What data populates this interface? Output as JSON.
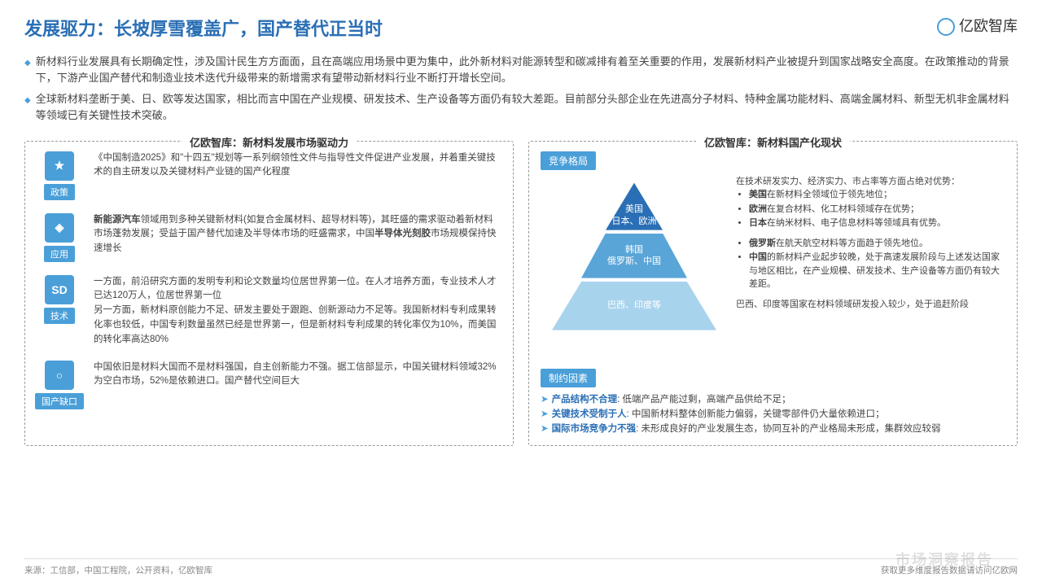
{
  "header": {
    "title": "发展驱力：长坡厚雪覆盖广，国产替代正当时",
    "logo": "亿欧智库"
  },
  "bullets": [
    "新材料行业发展具有长期确定性，涉及国计民生方方面面，且在高端应用场景中更为集中，此外新材料对能源转型和碳减排有着至关重要的作用，发展新材料产业被提升到国家战略安全高度。在政策推动的背景下，下游产业国产替代和制造业技术迭代升级带来的新增需求有望带动新材料行业不断打开增长空间。",
    "全球新材料垄断于美、日、欧等发达国家，相比而言中国在产业规模、研发技术、生产设备等方面仍有较大差距。目前部分头部企业在先进高分子材料、特种金属功能材料、高端金属材料、新型无机非金属材料等领域已有关键性技术突破。"
  ],
  "left": {
    "title": "亿欧智库：新材料发展市场驱动力",
    "drivers": [
      {
        "label": "政策",
        "icon": "★",
        "text": "《中国制造2025》和\"十四五\"规划等一系列纲领性文件与指导性文件促进产业发展，并着重关键技术的自主研发以及关键材料产业链的国产化程度"
      },
      {
        "label": "应用",
        "icon": "◈",
        "text": "<b>新能源汽车</b>领域用到多种关键新材料(如复合金属材料、超导材料等)，其旺盛的需求驱动着新材料市场蓬勃发展；受益于国产替代加速及半导体市场的旺盛需求，中国<b>半导体光刻胶</b>市场规模保持快速增长"
      },
      {
        "label": "技术",
        "icon": "SD",
        "text": "一方面，前沿研究方面的发明专利和论文数量均位居世界第一位。在人才培养方面，专业技术人才已达120万人，位居世界第一位<br>另一方面，新材料原创能力不足、研发主要处于跟跑、创新源动力不足等。我国新材料专利成果转化率也较低，中国专利数量虽然已经是世界第一，但是新材料专利成果的转化率仅为10%，而美国的转化率高达80%"
      },
      {
        "label": "国产缺口",
        "icon": "○",
        "text": "中国依旧是材料大国而不是材料强国，自主创新能力不强。据工信部显示，中国关键材料领域32%为空白市场，52%是依赖进口。国产替代空间巨大"
      }
    ]
  },
  "right": {
    "title": "亿欧智库：新材料国产化现状",
    "competition": "竞争格局",
    "pyramid": [
      {
        "lines": [
          "美国",
          "日本、欧洲"
        ],
        "color": "#2a6fb5"
      },
      {
        "lines": [
          "韩国",
          "俄罗斯、中国"
        ],
        "color": "#5aa5d8"
      },
      {
        "lines": [
          "巴西、印度等"
        ],
        "color": "#a8d3ed"
      }
    ],
    "info": [
      "在技术研发实力、经济实力、市占率等方面占绝对优势：<ul><li><b>美国</b>在新材料全领域位于领先地位；</li><li><b>欧洲</b>在复合材料、化工材料领域存在优势；</li><li><b>日本</b>在纳米材料、电子信息材料等领域具有优势。</li></ul>",
      "<ul><li><b>俄罗斯</b>在航天航空材料等方面趋于领先地位。</li><li><b>中国</b>的新材料产业起步较晚，处于高速发展阶段与上述发达国家与地区相比，在产业规模、研发技术、生产设备等方面仍有较大差距。</li></ul>",
      "巴西、印度等国家在材料领域研发投入较少，处于追赶阶段"
    ],
    "constraint_title": "制约因素",
    "constraints": [
      {
        "k": "产品结构不合理",
        "v": "低端产品产能过剩，高端产品供给不足；"
      },
      {
        "k": "关键技术受制于人",
        "v": "中国新材料整体创新能力偏弱，关键零部件仍大量依赖进口；"
      },
      {
        "k": "国际市场竞争力不强",
        "v": "未形成良好的产业发展生态，协同互补的产业格局未形成，集群效应较弱"
      }
    ]
  },
  "footer": {
    "left": "来源：工信部，中国工程院，公开资料，亿欧智库",
    "right": "获取更多维度报告数据请访问亿欧网"
  },
  "watermark": "市场洞察报告"
}
